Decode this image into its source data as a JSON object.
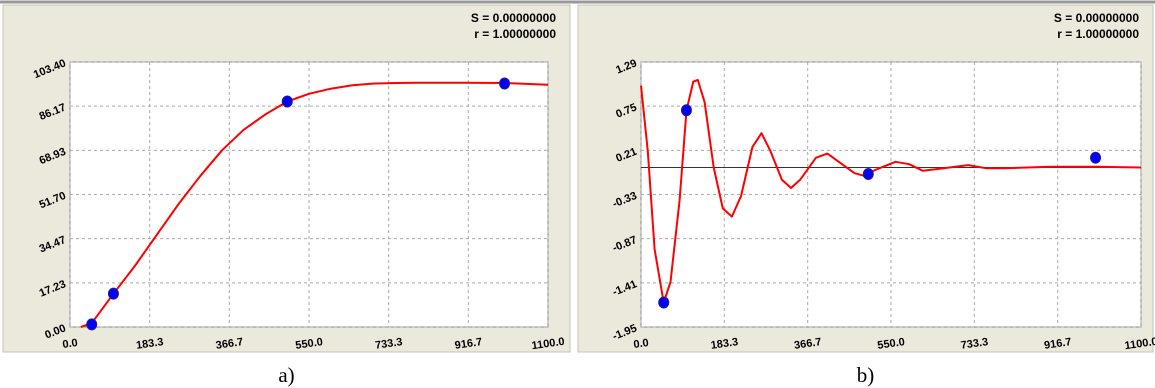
{
  "chart_data": [
    {
      "type": "line",
      "caption": "a)",
      "stats": [
        "S = 0.00000000",
        "r = 1.00000000"
      ],
      "xlim": [
        0,
        1100
      ],
      "ylim": [
        0,
        103.4
      ],
      "grid": true,
      "xticks": [
        {
          "value": 0,
          "label": "0.0"
        },
        183.3,
        366.7,
        {
          "value": 550,
          "label": "550.0"
        },
        733.3,
        916.7,
        {
          "value": 1100,
          "label": "1100.0"
        }
      ],
      "yticks": [
        {
          "value": 0,
          "label": "0.00"
        },
        17.23,
        34.47,
        {
          "value": 51.7,
          "label": "51.70"
        },
        68.93,
        86.17,
        {
          "value": 103.4,
          "label": "103.40"
        }
      ],
      "series": [
        {
          "style": "line",
          "color": "#ff0000",
          "x": [
            25,
            50,
            100,
            150,
            200,
            250,
            300,
            350,
            400,
            450,
            500,
            550,
            600,
            650,
            700,
            750,
            800,
            900,
            1000,
            1100
          ],
          "values": [
            0,
            1.5,
            13,
            24,
            36,
            48,
            59,
            69,
            77,
            83,
            88,
            91,
            93,
            94.3,
            95,
            95.2,
            95.3,
            95.3,
            95.2,
            94.5
          ]
        },
        {
          "style": "points",
          "color": "#0000ff",
          "x": [
            50,
            100,
            500,
            1000
          ],
          "values": [
            1,
            13,
            88,
            95
          ]
        }
      ]
    },
    {
      "type": "line",
      "caption": "b)",
      "stats": [
        "S = 0.00000000",
        "r = 1.00000000"
      ],
      "xlim": [
        0,
        1100
      ],
      "ylim": [
        -1.95,
        1.29
      ],
      "grid": true,
      "reference_line": 0,
      "xticks": [
        {
          "value": 0,
          "label": "0.0"
        },
        183.3,
        366.7,
        {
          "value": 550,
          "label": "550.0"
        },
        733.3,
        916.7,
        {
          "value": 1100,
          "label": "1100.0"
        }
      ],
      "yticks": [
        -1.95,
        -1.41,
        -0.87,
        -0.33,
        0.21,
        0.75,
        1.29
      ],
      "series": [
        {
          "style": "line",
          "color": "#ff0000",
          "x": [
            0,
            15,
            30,
            50,
            65,
            85,
            100,
            115,
            125,
            140,
            160,
            180,
            200,
            220,
            245,
            265,
            285,
            310,
            330,
            350,
            385,
            410,
            440,
            470,
            490,
            515,
            560,
            590,
            620,
            650,
            720,
            760,
            800,
            900,
            1000,
            1100
          ],
          "values": [
            1.0,
            0.2,
            -1.0,
            -1.65,
            -1.4,
            -0.4,
            0.7,
            1.05,
            1.07,
            0.8,
            0.0,
            -0.5,
            -0.6,
            -0.35,
            0.25,
            0.42,
            0.2,
            -0.15,
            -0.25,
            -0.15,
            0.12,
            0.17,
            0.05,
            -0.07,
            -0.1,
            -0.03,
            0.07,
            0.04,
            -0.04,
            -0.02,
            0.03,
            -0.01,
            -0.01,
            0.01,
            0.01,
            0
          ]
        },
        {
          "style": "points",
          "color": "#0000ff",
          "x": [
            50,
            100,
            500,
            1000
          ],
          "values": [
            -1.65,
            0.7,
            -0.08,
            0.12
          ]
        }
      ]
    }
  ]
}
